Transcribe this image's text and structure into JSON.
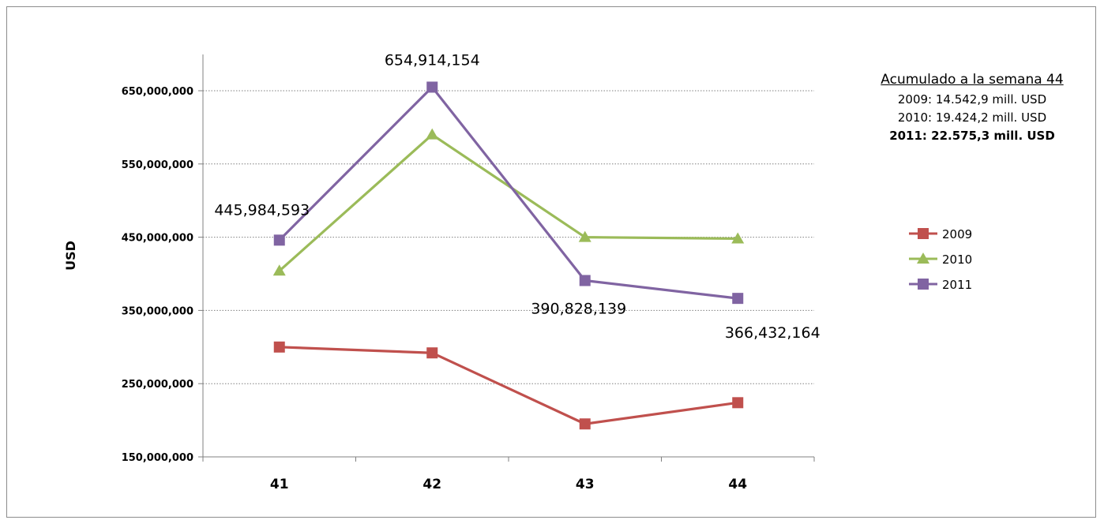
{
  "chart_data": {
    "type": "line",
    "title": "",
    "xlabel": "",
    "ylabel": "USD",
    "categories": [
      "41",
      "42",
      "43",
      "44"
    ],
    "ylim": [
      150000000,
      700000000
    ],
    "yticks": [
      150000000,
      250000000,
      350000000,
      450000000,
      550000000,
      650000000
    ],
    "ytick_labels": [
      "150,000,000",
      "250,000,000",
      "350,000,000",
      "450,000,000",
      "550,000,000",
      "650,000,000"
    ],
    "grid": "horizontal dotted",
    "legend_position": "right",
    "series": [
      {
        "name": "2009",
        "color": "#c0504d",
        "marker": "square",
        "values": [
          300000000,
          292000000,
          195000000,
          224000000
        ]
      },
      {
        "name": "2010",
        "color": "#9bbb59",
        "marker": "triangle",
        "values": [
          404000000,
          590000000,
          450000000,
          448000000
        ]
      },
      {
        "name": "2011",
        "color": "#8064a2",
        "marker": "square",
        "values": [
          445984593,
          654914154,
          390828139,
          366432164
        ]
      }
    ],
    "data_labels": [
      {
        "series": "2011",
        "index": 0,
        "text": "445,984,593"
      },
      {
        "series": "2011",
        "index": 1,
        "text": "654,914,154"
      },
      {
        "series": "2011",
        "index": 2,
        "text": "390,828,139"
      },
      {
        "series": "2011",
        "index": 3,
        "text": "366,432,164"
      }
    ]
  },
  "summary": {
    "title": "Acumulado a la semana 44",
    "lines": [
      {
        "text": "2009: 14.542,9  mill. USD",
        "bold": false
      },
      {
        "text": "2010: 19.424,2  mill. USD",
        "bold": false
      },
      {
        "text": "2011: 22.575,3  mill. USD",
        "bold": true
      }
    ]
  }
}
